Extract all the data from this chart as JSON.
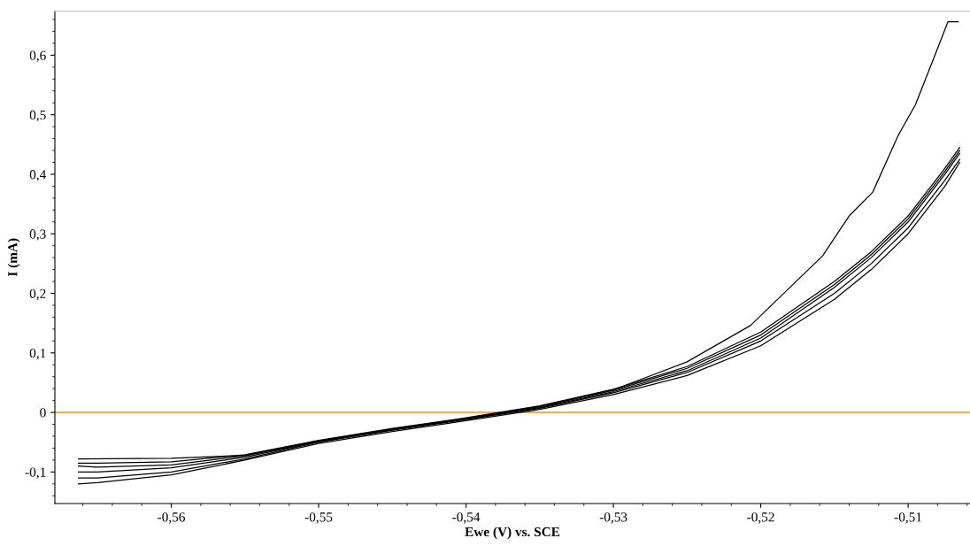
{
  "chart_data": {
    "type": "line",
    "xlabel": "Ewe (V) vs. SCE",
    "ylabel": "I (mA)",
    "x": [
      -0.5663,
      -0.565,
      -0.56,
      -0.555,
      -0.55,
      -0.545,
      -0.54,
      -0.535,
      -0.53,
      -0.525,
      -0.52,
      -0.515,
      -0.5125,
      -0.51,
      -0.5075,
      -0.5065
    ],
    "series": [
      {
        "color": "#000000",
        "values": [
          -0.12,
          -0.118,
          -0.105,
          -0.08,
          -0.052,
          -0.032,
          -0.014,
          0.005,
          0.03,
          0.062,
          0.112,
          0.19,
          0.24,
          0.3,
          0.38,
          0.42
        ]
      },
      {
        "color": "#000000",
        "values": [
          -0.11,
          -0.11,
          -0.1,
          -0.078,
          -0.05,
          -0.03,
          -0.012,
          0.007,
          0.033,
          0.067,
          0.12,
          0.2,
          0.25,
          0.31,
          0.39,
          0.425
        ]
      },
      {
        "color": "#000000",
        "values": [
          -0.1,
          -0.1,
          -0.093,
          -0.075,
          -0.049,
          -0.029,
          -0.011,
          0.008,
          0.035,
          0.07,
          0.125,
          0.21,
          0.26,
          0.32,
          0.4,
          0.435
        ]
      },
      {
        "color": "#000000",
        "values": [
          -0.09,
          -0.092,
          -0.088,
          -0.073,
          -0.048,
          -0.028,
          -0.01,
          0.01,
          0.037,
          0.074,
          0.13,
          0.215,
          0.265,
          0.325,
          0.405,
          0.44
        ]
      },
      {
        "color": "#000000",
        "values": [
          -0.085,
          -0.085,
          -0.083,
          -0.071,
          -0.047,
          -0.027,
          -0.009,
          0.011,
          0.039,
          0.077,
          0.135,
          0.22,
          0.27,
          0.33,
          0.41,
          0.445
        ]
      },
      {
        "color": "#000000",
        "x": [
          -0.5663,
          -0.56,
          -0.555,
          -0.55,
          -0.545,
          -0.54,
          -0.535,
          -0.53,
          -0.525,
          -0.5207,
          -0.5158,
          -0.514,
          -0.5124,
          -0.5107,
          -0.5095,
          -0.5081,
          -0.5073,
          -0.5066
        ],
        "values": [
          -0.078,
          -0.077,
          -0.072,
          -0.048,
          -0.028,
          -0.01,
          0.01,
          0.038,
          0.085,
          0.146,
          0.263,
          0.33,
          0.37,
          0.464,
          0.517,
          0.605,
          0.656,
          0.656
        ]
      }
    ],
    "xlim": [
      -0.5679,
      -0.5058
    ],
    "ylim": [
      -0.153,
      0.674
    ],
    "xticks": [
      {
        "value": -0.56,
        "label": "-0,56"
      },
      {
        "value": -0.55,
        "label": "-0,55"
      },
      {
        "value": -0.54,
        "label": "-0,54"
      },
      {
        "value": -0.53,
        "label": "-0,53"
      },
      {
        "value": -0.52,
        "label": "-0,52"
      },
      {
        "value": -0.51,
        "label": "-0,51"
      }
    ],
    "yticks": [
      {
        "value": -0.1,
        "label": "-0,1"
      },
      0,
      {
        "value": 0.1,
        "label": "0,1"
      },
      {
        "value": 0.2,
        "label": "0,2"
      },
      {
        "value": 0.3,
        "label": "0,3"
      },
      {
        "value": 0.4,
        "label": "0,4"
      },
      {
        "value": 0.5,
        "label": "0,5"
      },
      {
        "value": 0.6,
        "label": "0,6"
      }
    ],
    "ref_lines": [
      {
        "axis": "y",
        "value": 0,
        "color": "#e8932e"
      }
    ],
    "grid": false,
    "legend": false,
    "marker": "none",
    "line_style": "solid"
  }
}
